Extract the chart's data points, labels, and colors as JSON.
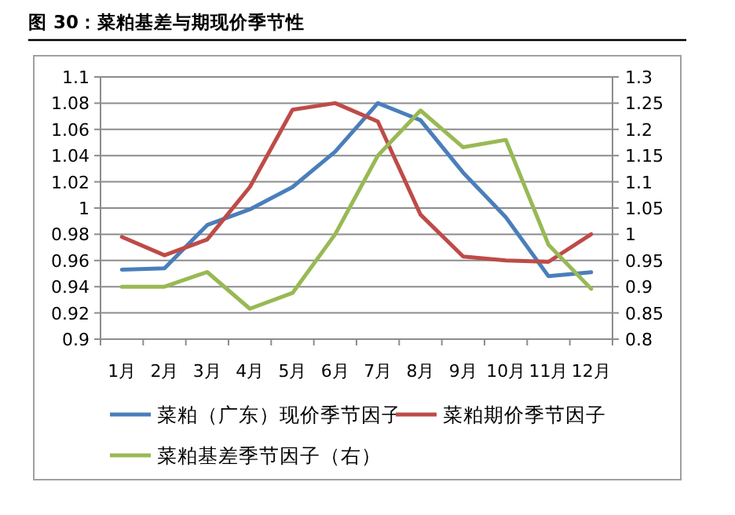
{
  "chart_data": {
    "type": "line",
    "title": "图 30：菜粕基差与期现价季节性",
    "categories": [
      "1月",
      "2月",
      "3月",
      "4月",
      "5月",
      "6月",
      "7月",
      "8月",
      "9月",
      "10月",
      "11月",
      "12月"
    ],
    "series": [
      {
        "name": "菜粕（广东）现价季节因子",
        "color": "#4a7ebb",
        "values": [
          0.953,
          0.954,
          0.987,
          0.999,
          1.016,
          1.043,
          1.08,
          1.067,
          1.027,
          0.993,
          0.948,
          0.951
        ]
      },
      {
        "name": "菜粕期价季节因子",
        "color": "#be4b48",
        "values": [
          0.978,
          0.964,
          0.976,
          1.016,
          1.075,
          1.08,
          1.066,
          0.995,
          0.963,
          0.96,
          0.959,
          0.98
        ]
      },
      {
        "name": "菜粕基差季节因子（右）",
        "color": "#98b954",
        "axis": "y2",
        "values": [
          0.9,
          0.9,
          0.928,
          0.858,
          0.888,
          1.0,
          1.15,
          1.236,
          1.166,
          1.18,
          0.98,
          0.896
        ]
      }
    ],
    "ylim": [
      0.9,
      1.1
    ],
    "yticks": [
      0.9,
      0.92,
      0.94,
      0.96,
      0.98,
      1,
      1.02,
      1.04,
      1.06,
      1.08,
      1.1
    ],
    "y2lim": [
      0.8,
      1.3
    ],
    "y2ticks": [
      0.8,
      0.85,
      0.9,
      0.95,
      1,
      1.05,
      1.1,
      1.15,
      1.2,
      1.25,
      1.3
    ],
    "grid": "y",
    "legend": "bottom",
    "marker": "none",
    "line_style": "solid"
  }
}
